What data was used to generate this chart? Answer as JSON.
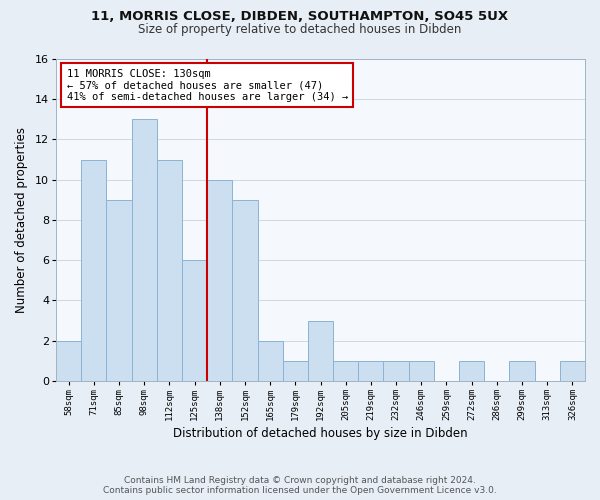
{
  "title_line1": "11, MORRIS CLOSE, DIBDEN, SOUTHAMPTON, SO45 5UX",
  "title_line2": "Size of property relative to detached houses in Dibden",
  "xlabel": "Distribution of detached houses by size in Dibden",
  "ylabel": "Number of detached properties",
  "footnote_line1": "Contains HM Land Registry data © Crown copyright and database right 2024.",
  "footnote_line2": "Contains public sector information licensed under the Open Government Licence v3.0.",
  "bin_labels": [
    "58sqm",
    "71sqm",
    "85sqm",
    "98sqm",
    "112sqm",
    "125sqm",
    "138sqm",
    "152sqm",
    "165sqm",
    "179sqm",
    "192sqm",
    "205sqm",
    "219sqm",
    "232sqm",
    "246sqm",
    "259sqm",
    "272sqm",
    "286sqm",
    "299sqm",
    "313sqm",
    "326sqm"
  ],
  "bar_heights": [
    2,
    11,
    9,
    13,
    11,
    6,
    10,
    9,
    2,
    1,
    3,
    1,
    1,
    1,
    1,
    0,
    1,
    0,
    1,
    0,
    1
  ],
  "bar_color": "#ccdff0",
  "bar_edge_color": "#8ab4d4",
  "vline_x_index": 5.5,
  "vline_color": "#cc0000",
  "annotation_title": "11 MORRIS CLOSE: 130sqm",
  "annotation_line1": "← 57% of detached houses are smaller (47)",
  "annotation_line2": "41% of semi-detached houses are larger (34) →",
  "annotation_box_edge": "#cc0000",
  "ylim": [
    0,
    16
  ],
  "yticks": [
    0,
    2,
    4,
    6,
    8,
    10,
    12,
    14,
    16
  ],
  "background_color": "#e8eef5",
  "plot_bg_color": "#f5f8fc",
  "grid_color": "#c8d4e0",
  "title_fontsize": 9.5,
  "subtitle_fontsize": 8.5,
  "footnote_fontsize": 6.5
}
